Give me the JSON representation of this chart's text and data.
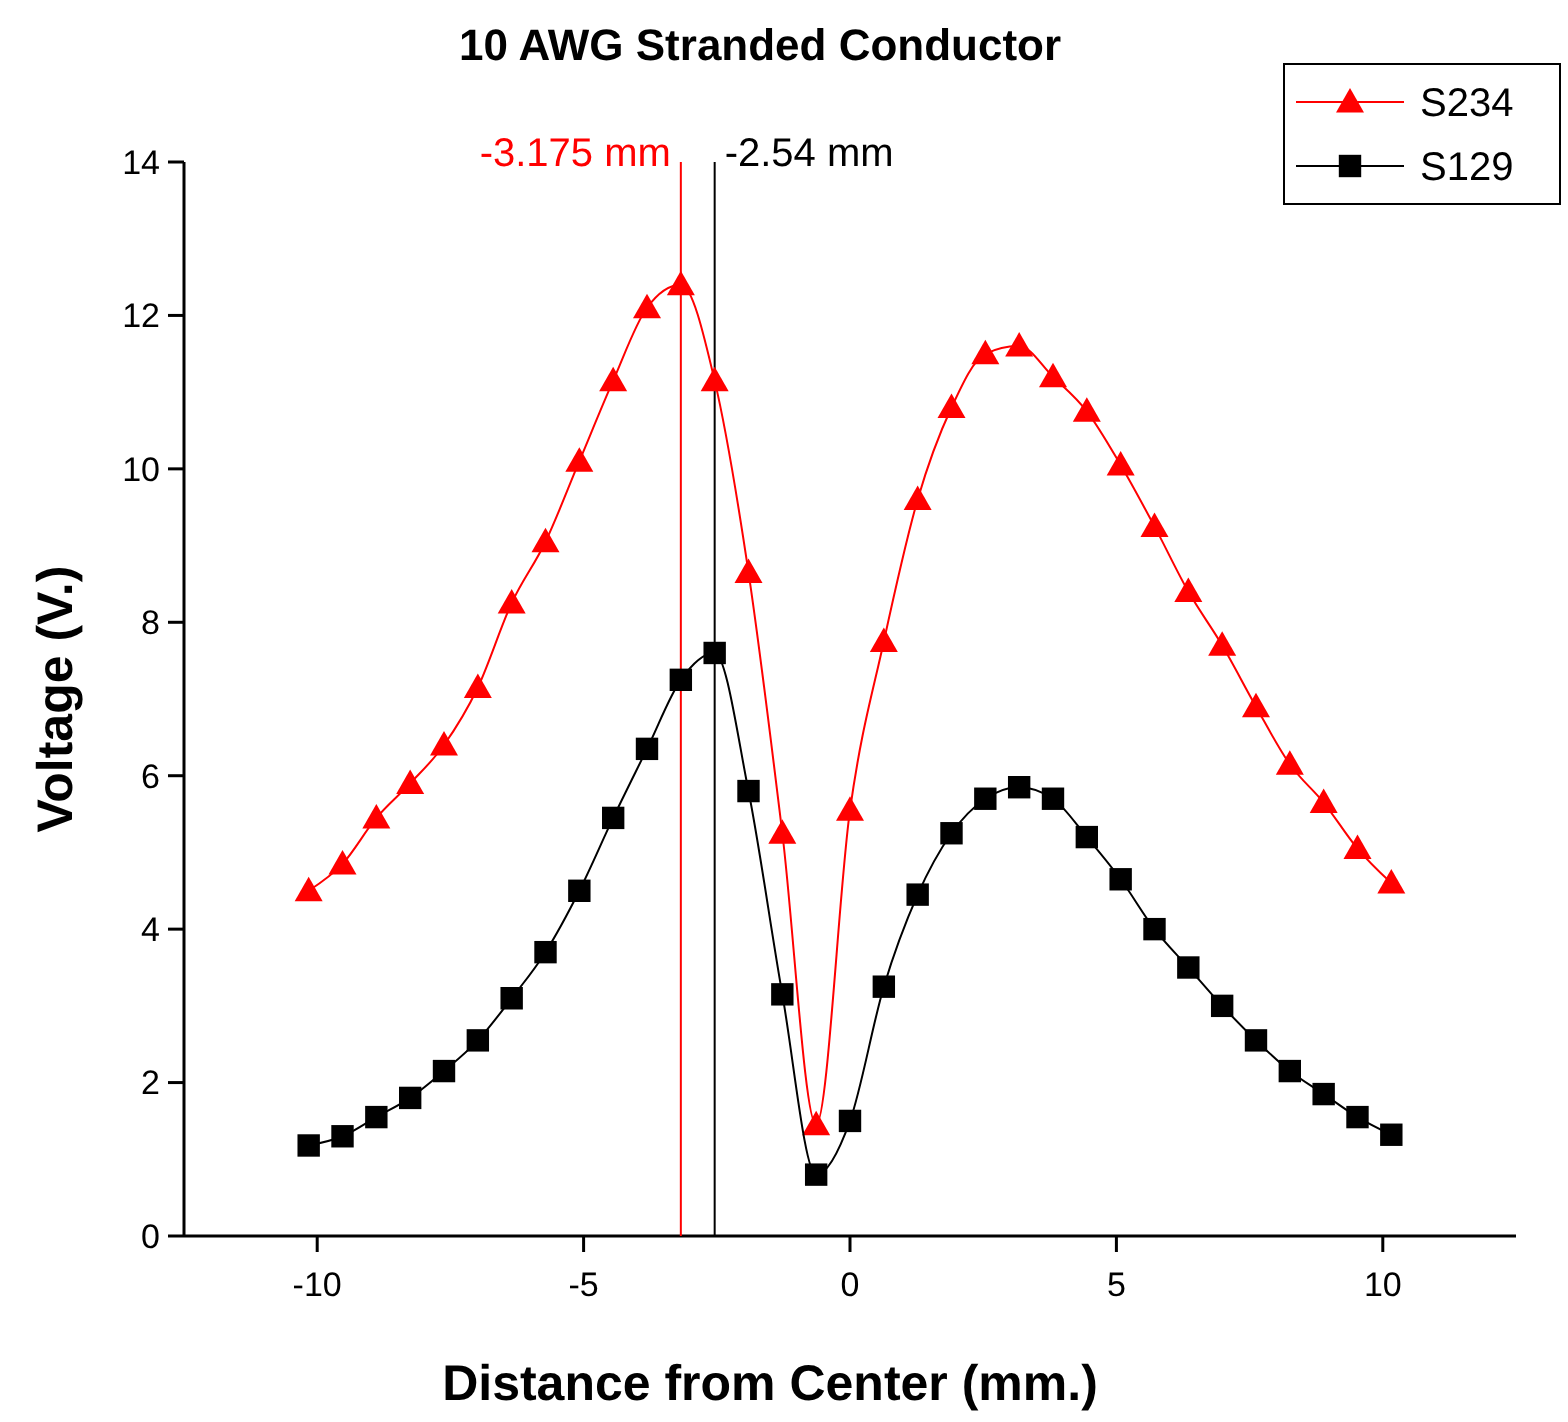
{
  "chart_data": {
    "type": "line",
    "title": "10 AWG Stranded Conductor",
    "xlabel": "Distance from Center (mm.)",
    "ylabel": "Voltage (V.)",
    "x": [
      -10.16,
      -9.525,
      -8.89,
      -8.255,
      -7.62,
      -6.985,
      -6.35,
      -5.715,
      -5.08,
      -4.445,
      -3.81,
      -3.175,
      -2.54,
      -1.905,
      -1.27,
      -0.635,
      0,
      0.635,
      1.27,
      1.905,
      2.54,
      3.175,
      3.81,
      4.445,
      5.08,
      5.715,
      6.35,
      6.985,
      7.62,
      8.255,
      8.89,
      9.525,
      10.16
    ],
    "series": [
      {
        "name": "S234",
        "color": "#ff0000",
        "marker": "triangle",
        "values": [
          4.5,
          4.85,
          5.45,
          5.9,
          6.4,
          7.15,
          8.25,
          9.05,
          10.1,
          11.15,
          12.1,
          12.4,
          11.15,
          8.65,
          5.25,
          1.45,
          5.55,
          7.75,
          9.6,
          10.8,
          11.5,
          11.6,
          11.2,
          10.75,
          10.05,
          9.25,
          8.4,
          7.7,
          6.9,
          6.15,
          5.65,
          5.05,
          4.6
        ]
      },
      {
        "name": "S129",
        "color": "#000000",
        "marker": "square",
        "values": [
          1.18,
          1.3,
          1.55,
          1.8,
          2.15,
          2.55,
          3.1,
          3.7,
          4.5,
          5.45,
          6.35,
          7.25,
          7.6,
          5.8,
          3.15,
          0.8,
          1.5,
          3.25,
          4.45,
          5.25,
          5.7,
          5.85,
          5.7,
          5.2,
          4.65,
          4.0,
          3.5,
          3.0,
          2.55,
          2.15,
          1.85,
          1.55,
          1.32
        ]
      }
    ],
    "xlim": [
      -12.5,
      12.5
    ],
    "xticks": [
      -10,
      -5,
      0,
      5,
      10
    ],
    "ylim": [
      0,
      14
    ],
    "yticks": [
      0,
      2,
      4,
      6,
      8,
      10,
      12,
      14
    ],
    "ref_lines": [
      {
        "axis": "x",
        "value": -3.175,
        "label": "-3.175 mm",
        "color": "#ff0000"
      },
      {
        "axis": "x",
        "value": -2.54,
        "label": "-2.54 mm",
        "color": "#000000"
      }
    ],
    "grid": false,
    "legend": "top right"
  }
}
